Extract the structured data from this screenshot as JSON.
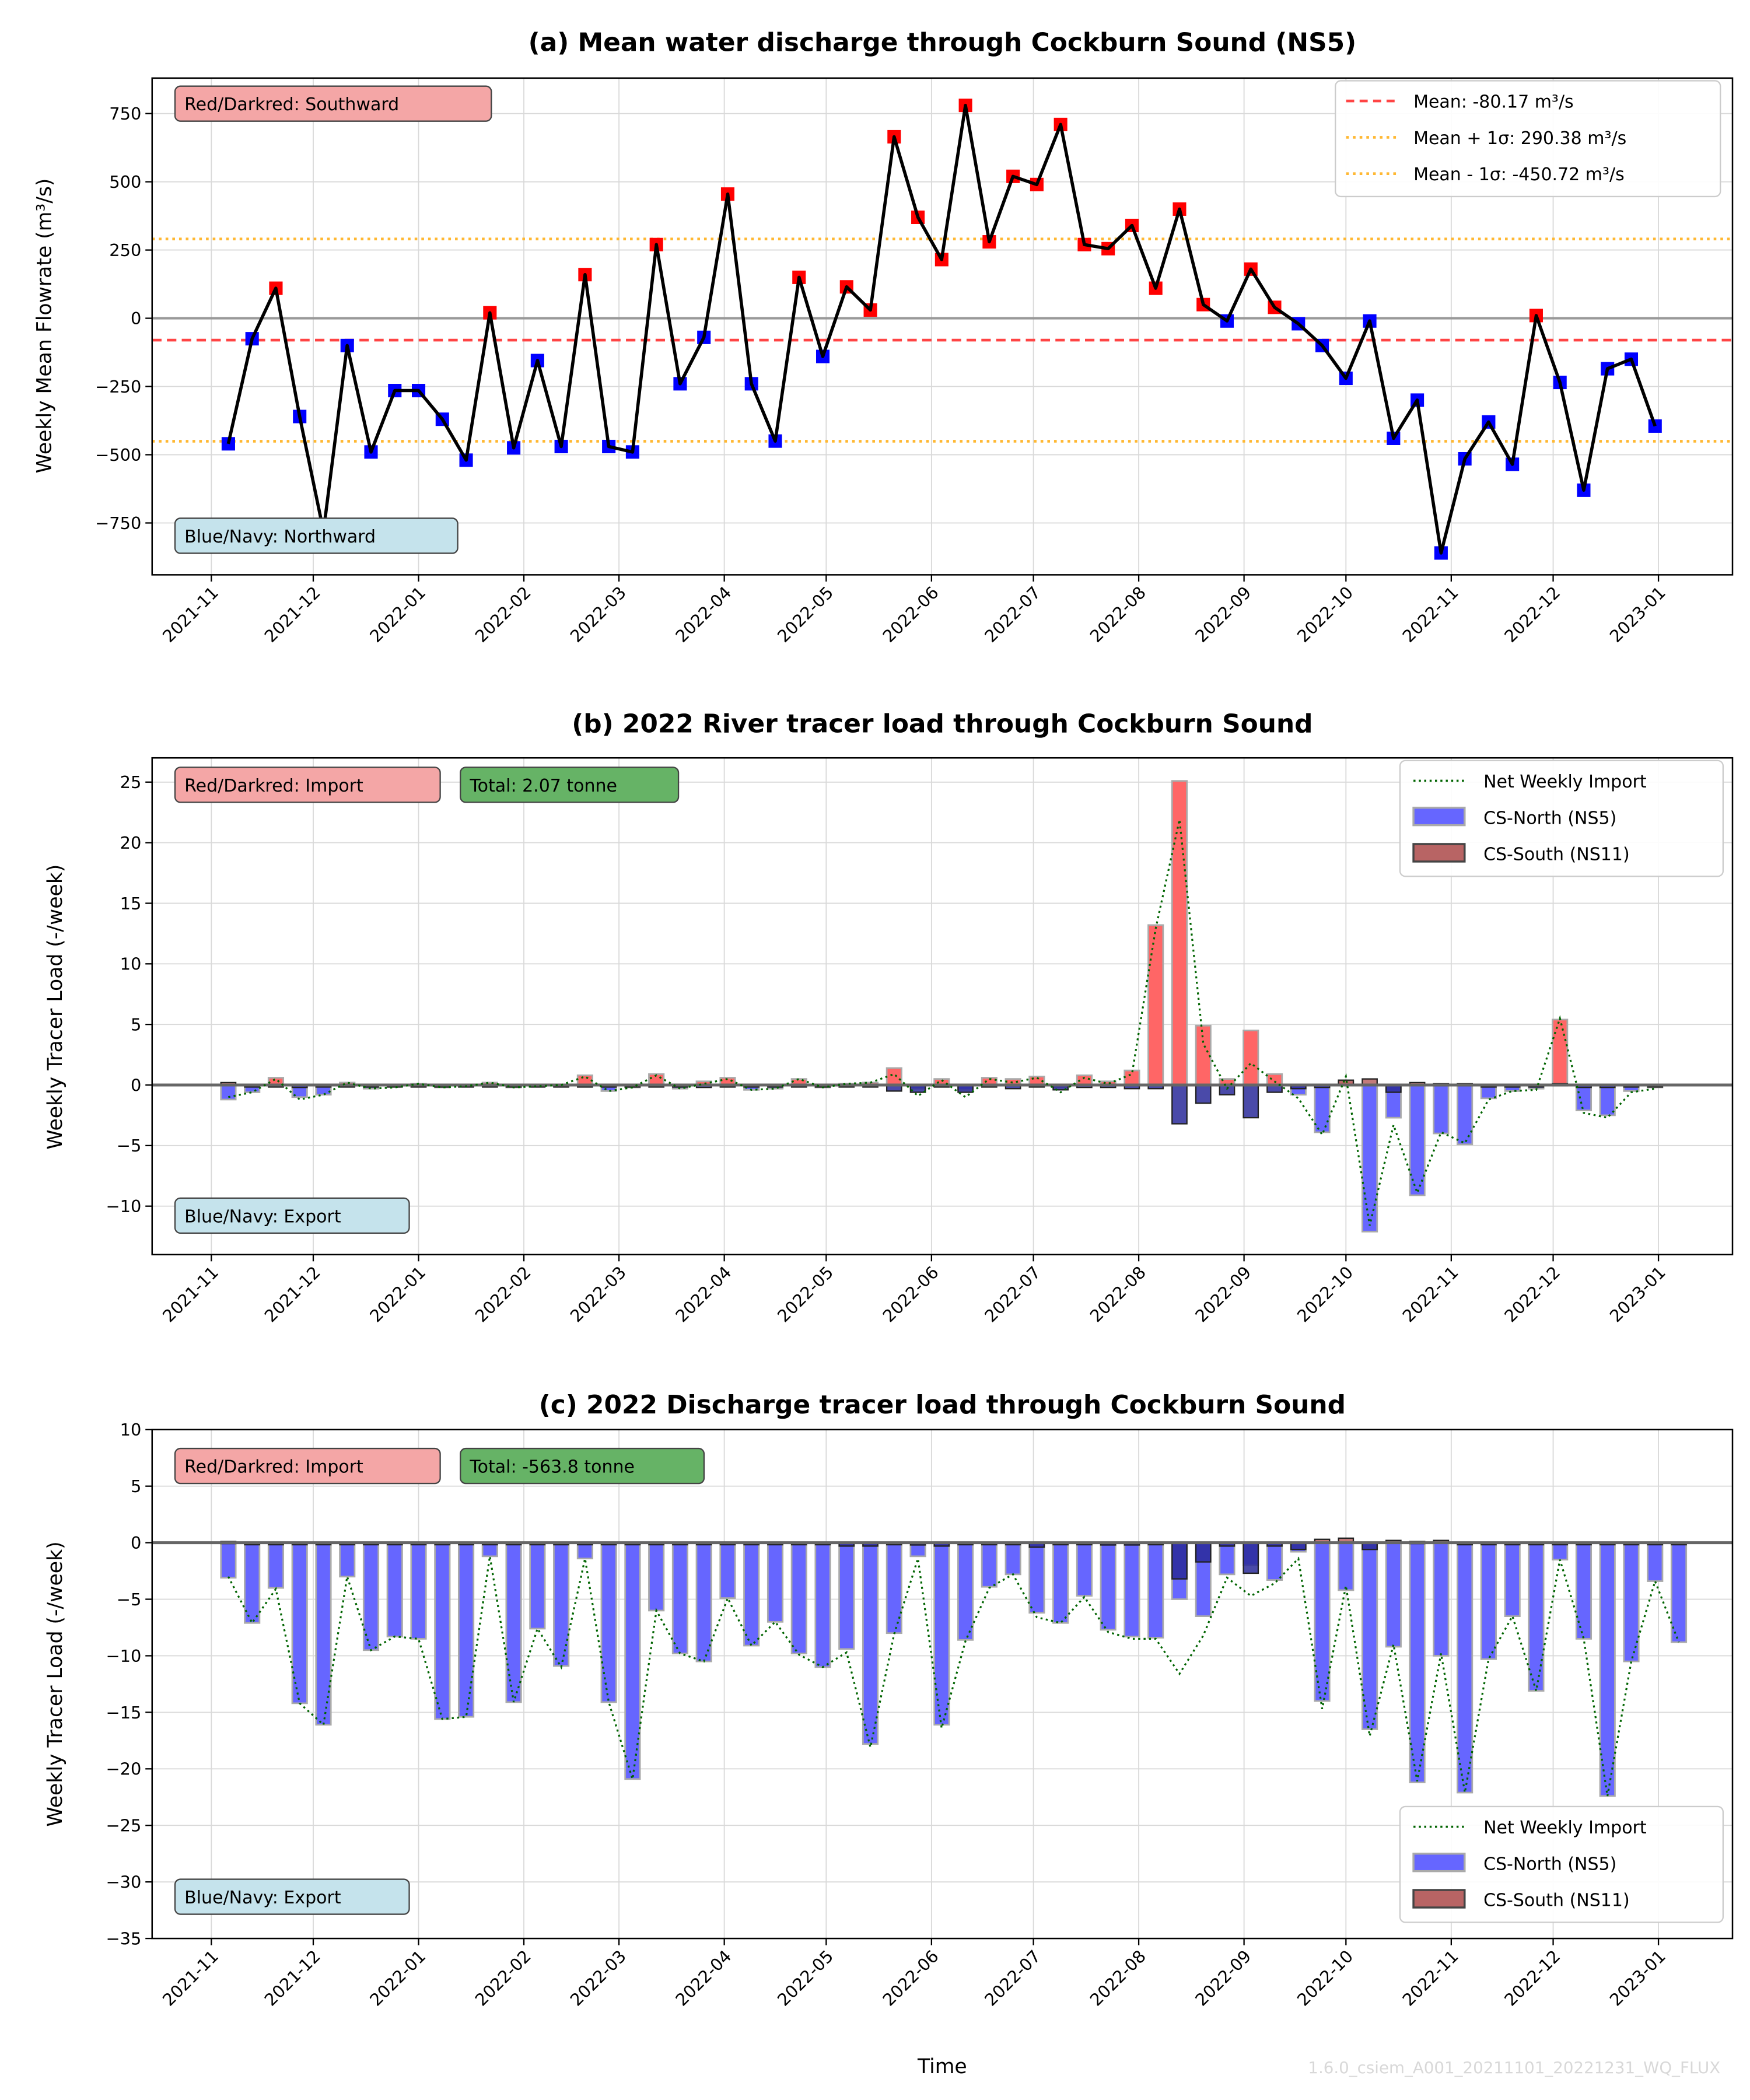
{
  "footer": {
    "xlabel": "Time",
    "watermark": "1.6.0_csiem_A001_20211101_20221231_WQ_FLUX"
  },
  "colors": {
    "southward": "#ff0000",
    "northward": "#0000ff",
    "import_box": "#f4a6a6",
    "export_box": "#c5e3ec",
    "total_box": "#66b366",
    "mean_line": "#ff4444",
    "sigma_line": "#ffb833",
    "north_bar": "#6666ff",
    "south_bar": "#b86464",
    "net_line": "#006400"
  },
  "x_ticks": [
    "2021-11",
    "2021-12",
    "2022-01",
    "2022-02",
    "2022-03",
    "2022-04",
    "2022-05",
    "2022-06",
    "2022-07",
    "2022-08",
    "2022-09",
    "2022-10",
    "2022-11",
    "2022-12",
    "2023-01"
  ],
  "chart_data": [
    {
      "type": "line",
      "title": "(a) Mean water discharge through Cockburn Sound (NS5)",
      "xlabel": "",
      "ylabel": "Weekly Mean Flowrate (m³/s)",
      "ylim": [
        -940,
        880
      ],
      "yticks": [
        750,
        500,
        250,
        0,
        -250,
        -500,
        -750
      ],
      "grid": true,
      "legend_position": "top-right",
      "annotations": [
        "Red/Darkred: Southward",
        "Blue/Navy: Northward"
      ],
      "reference_lines": [
        {
          "name": "Mean: -80.17 m³/s",
          "value": -80.17,
          "style": "dashed"
        },
        {
          "name": "Mean + 1σ: 290.38 m³/s",
          "value": 290.38,
          "style": "dotted"
        },
        {
          "name": "Mean - 1σ: -450.72 m³/s",
          "value": -450.72,
          "style": "dotted"
        }
      ],
      "start_date": "2021-11-06",
      "interval_days": 7,
      "values": [
        -460,
        -75,
        110,
        -360,
        -780,
        -100,
        -490,
        -265,
        -265,
        -370,
        -520,
        20,
        -475,
        -155,
        -470,
        160,
        -470,
        -490,
        270,
        -240,
        -70,
        455,
        -240,
        -450,
        150,
        -140,
        115,
        30,
        665,
        370,
        215,
        780,
        280,
        520,
        490,
        710,
        270,
        255,
        340,
        110,
        400,
        50,
        -10,
        180,
        40,
        -20,
        -100,
        -220,
        -10,
        -440,
        -300,
        -860,
        -515,
        -380,
        -535,
        10,
        -235,
        -630,
        -185,
        -150,
        -395
      ]
    },
    {
      "type": "bar",
      "title": "(b) 2022 River tracer load through Cockburn Sound",
      "xlabel": "",
      "ylabel": "Weekly Tracer Load (-/week)",
      "ylim": [
        -14,
        27
      ],
      "yticks": [
        25,
        20,
        15,
        10,
        5,
        0,
        -5,
        -10
      ],
      "grid": true,
      "legend_position": "top-right",
      "legend": [
        "Net Weekly Import",
        "CS-North (NS5)",
        "CS-South (NS11)"
      ],
      "annotations": [
        "Red/Darkred: Import",
        "Total: 2.07 tonne",
        "Blue/Navy: Export"
      ],
      "start_date": "2021-11-06",
      "interval_days": 7,
      "series": [
        {
          "name": "CS-North (NS5)",
          "values": [
            -1.2,
            -0.6,
            0.6,
            -1.0,
            -0.8,
            0.2,
            -0.3,
            -0.1,
            0.1,
            -0.2,
            -0.1,
            0.2,
            -0.2,
            -0.1,
            0.0,
            0.8,
            -0.5,
            -0.2,
            0.9,
            -0.3,
            0.3,
            0.6,
            -0.4,
            -0.3,
            0.5,
            -0.2,
            0.1,
            0.2,
            1.4,
            -0.3,
            0.5,
            -0.4,
            0.6,
            0.5,
            0.7,
            -0.2,
            0.8,
            0.3,
            1.2,
            13.2,
            25.1,
            4.9,
            0.5,
            4.5,
            0.9,
            -0.8,
            -3.9,
            0.3,
            -12.1,
            -2.7,
            -9.1,
            -4.0,
            -4.9,
            -1.1,
            -0.5,
            -0.3,
            5.4,
            -2.1,
            -2.5,
            -0.5,
            -0.2
          ]
        },
        {
          "name": "CS-South (NS11)",
          "values": [
            0.2,
            0.0,
            -0.1,
            -0.2,
            0.0,
            0.0,
            0.0,
            -0.1,
            0.0,
            0.0,
            0.0,
            0.0,
            0.0,
            0.0,
            0.0,
            -0.1,
            0.0,
            0.0,
            -0.1,
            0.0,
            -0.2,
            -0.1,
            0.0,
            0.0,
            0.0,
            0.0,
            0.0,
            0.0,
            -0.5,
            -0.6,
            -0.1,
            -0.6,
            -0.1,
            -0.3,
            -0.1,
            -0.4,
            -0.2,
            -0.2,
            -0.3,
            -0.3,
            -3.2,
            -1.5,
            -0.8,
            -2.7,
            -0.6,
            -0.3,
            -0.2,
            0.4,
            0.5,
            -0.6,
            0.2,
            0.1,
            0.1,
            -0.1,
            0.0,
            -0.1,
            0.1,
            -0.2,
            -0.2,
            -0.1,
            -0.1
          ]
        },
        {
          "name": "Net Weekly Import",
          "values": [
            -1.0,
            -0.6,
            0.5,
            -1.2,
            -0.8,
            0.2,
            -0.3,
            -0.2,
            0.1,
            -0.2,
            -0.1,
            0.2,
            -0.2,
            -0.1,
            0.0,
            0.7,
            -0.5,
            -0.2,
            0.8,
            -0.3,
            0.1,
            0.5,
            -0.4,
            -0.3,
            0.5,
            -0.2,
            0.1,
            0.2,
            0.9,
            -0.9,
            0.4,
            -1.0,
            0.5,
            0.2,
            0.6,
            -0.6,
            0.6,
            0.1,
            0.9,
            12.9,
            21.9,
            3.4,
            -0.3,
            1.8,
            0.3,
            -1.1,
            -4.1,
            0.7,
            -11.6,
            -3.3,
            -8.9,
            -3.9,
            -4.8,
            -1.2,
            -0.5,
            -0.4,
            5.5,
            -2.3,
            -2.7,
            -0.6,
            -0.3
          ]
        }
      ]
    },
    {
      "type": "bar",
      "title": "(c) 2022 Discharge tracer load through Cockburn Sound",
      "xlabel": "Time",
      "ylabel": "Weekly Tracer Load (-/week)",
      "ylim": [
        -35,
        10
      ],
      "yticks": [
        10,
        5,
        0,
        -5,
        -10,
        -15,
        -20,
        -25,
        -30,
        -35
      ],
      "grid": true,
      "legend_position": "bottom-right",
      "legend": [
        "Net Weekly Import",
        "CS-North (NS5)",
        "CS-South (NS11)"
      ],
      "annotations": [
        "Red/Darkred: Import",
        "Total: -563.8 tonne",
        "Blue/Navy: Export"
      ],
      "start_date": "2021-11-06",
      "interval_days": 7,
      "series": [
        {
          "name": "CS-North (NS5)",
          "values": [
            -3.1,
            -7.1,
            -4.0,
            -14.2,
            -16.1,
            -3.0,
            -9.5,
            -8.3,
            -8.5,
            -15.6,
            -15.4,
            -1.2,
            -14.1,
            -7.6,
            -10.9,
            -1.4,
            -14.1,
            -20.9,
            -6.0,
            -9.8,
            -10.5,
            -4.9,
            -9.1,
            -7.0,
            -9.8,
            -11.0,
            -9.4,
            -17.8,
            -8.0,
            -1.2,
            -16.1,
            -8.6,
            -3.9,
            -2.8,
            -6.2,
            -7.1,
            -4.7,
            -7.7,
            -8.3,
            -8.4,
            -5.0,
            -6.5,
            -2.8,
            -2.0,
            -3.3,
            -0.8,
            -14.0,
            -4.2,
            -16.5,
            -9.2,
            -21.2,
            -10.0,
            -22.1,
            -10.3,
            -6.5,
            -13.1,
            -1.5,
            -8.5,
            -22.4,
            -10.5,
            -3.4,
            -8.8
          ]
        },
        {
          "name": "CS-South (NS11)",
          "values": [
            0.1,
            0.0,
            -0.1,
            0.0,
            0.0,
            0.0,
            0.0,
            0.0,
            0.0,
            0.0,
            0.0,
            0.0,
            0.0,
            0.0,
            -0.1,
            0.0,
            0.0,
            0.0,
            0.0,
            0.0,
            0.0,
            0.0,
            0.0,
            0.0,
            -0.1,
            0.0,
            -0.3,
            -0.3,
            -0.1,
            -0.2,
            -0.3,
            -0.1,
            -0.1,
            0.0,
            -0.4,
            0.0,
            -0.1,
            -0.2,
            -0.2,
            -0.1,
            -3.2,
            -1.7,
            -0.3,
            -2.7,
            -0.3,
            -0.6,
            0.3,
            0.4,
            -0.6,
            0.2,
            0.1,
            0.2,
            0.0,
            0.0,
            0.0,
            0.0,
            0.0,
            0.0,
            0.0,
            0.0,
            0.0,
            0.0
          ]
        },
        {
          "name": "Net Weekly Import",
          "values": [
            -3.0,
            -7.1,
            -4.1,
            -14.2,
            -16.1,
            -3.0,
            -9.5,
            -8.3,
            -8.5,
            -15.6,
            -15.4,
            -1.2,
            -14.1,
            -7.6,
            -11.0,
            -1.4,
            -14.1,
            -20.9,
            -6.0,
            -9.8,
            -10.5,
            -4.9,
            -9.1,
            -7.0,
            -9.9,
            -11.0,
            -9.7,
            -18.1,
            -8.1,
            -1.4,
            -16.4,
            -8.7,
            -4.0,
            -2.8,
            -6.6,
            -7.1,
            -4.8,
            -7.9,
            -8.5,
            -8.5,
            -11.6,
            -8.2,
            -3.1,
            -4.7,
            -3.6,
            -1.4,
            -14.7,
            -3.8,
            -17.1,
            -9.0,
            -21.1,
            -9.8,
            -22.1,
            -10.3,
            -6.5,
            -13.1,
            -1.5,
            -8.5,
            -22.4,
            -10.5,
            -3.4,
            -8.8
          ]
        }
      ]
    }
  ]
}
